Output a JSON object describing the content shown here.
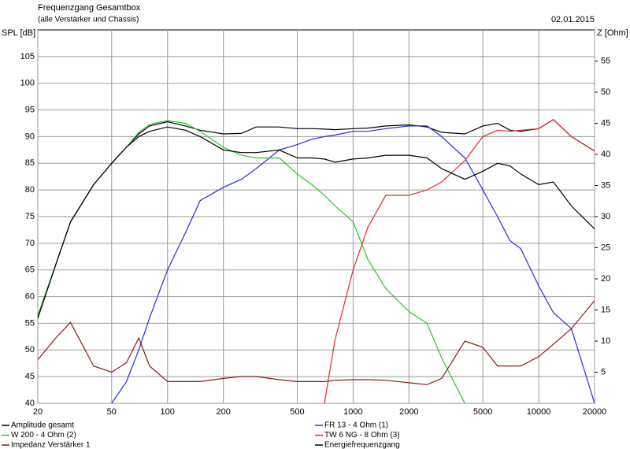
{
  "chart_data": {
    "type": "line",
    "title": "Frequenzgang Gesamtbox",
    "subtitle": "(alle Verstärker und Chassis)",
    "date": "02.01.2015",
    "y_label": "SPL [dB]",
    "y2_label": "Z [Ohm]",
    "x_scale": "log",
    "grid": true,
    "x": [
      20,
      25,
      30,
      40,
      50,
      60,
      70,
      80,
      100,
      125,
      150,
      200,
      250,
      300,
      400,
      500,
      600,
      700,
      800,
      1000,
      1200,
      1500,
      2000,
      2500,
      3000,
      4000,
      5000,
      6000,
      7000,
      8000,
      10000,
      12000,
      15000,
      20000
    ],
    "xlim": [
      20,
      20000
    ],
    "xticks": [
      20,
      50,
      100,
      200,
      500,
      1000,
      2000,
      5000,
      10000,
      20000
    ],
    "ylim": [
      40,
      110
    ],
    "yticks": [
      40,
      45,
      50,
      55,
      60,
      65,
      70,
      75,
      80,
      85,
      90,
      95,
      100,
      105
    ],
    "y2lim": [
      0,
      60
    ],
    "y2ticks": [
      5,
      10,
      15,
      20,
      25,
      30,
      35,
      40,
      45,
      50,
      55
    ],
    "series": [
      {
        "name": "Amplitude gesamt",
        "color": "#000000",
        "values": [
          56,
          66,
          74,
          81,
          85,
          88,
          90.5,
          92,
          92.8,
          92,
          91.2,
          90.5,
          90.6,
          91.8,
          91.8,
          91.5,
          91.5,
          91.4,
          91.3,
          91.5,
          91.6,
          92,
          92.2,
          91.8,
          90.8,
          90.5,
          92,
          92.5,
          91.2,
          91,
          91.5,
          93.2,
          90,
          87.3
        ]
      },
      {
        "name": "FR 13 - 4 Ohm (1)",
        "color": "#2a2ae0",
        "values": [
          null,
          null,
          null,
          null,
          40,
          44,
          50,
          56,
          65,
          72,
          78,
          80.5,
          82,
          84,
          87.5,
          88.5,
          89.5,
          90,
          90.3,
          91,
          91,
          91.5,
          92,
          92,
          90,
          86,
          80,
          75,
          70.5,
          69,
          62,
          57,
          54,
          40
        ]
      },
      {
        "name": "W 200 - 4 Ohm (2)",
        "color": "#22cc22",
        "values": [
          56.5,
          66,
          74,
          81,
          85,
          88,
          90.8,
          92.3,
          93,
          92.5,
          91,
          88,
          86.5,
          86,
          86,
          83,
          81,
          79,
          77,
          74,
          67,
          61.5,
          57.2,
          55,
          48.5,
          40,
          null,
          null,
          null,
          null,
          null,
          null,
          null,
          null
        ]
      },
      {
        "name": "TW 6 NG - 8 Ohm (3)",
        "color": "#e02a2a",
        "values": [
          null,
          null,
          null,
          null,
          null,
          null,
          null,
          null,
          null,
          null,
          null,
          null,
          null,
          null,
          null,
          null,
          null,
          40,
          52,
          65,
          73,
          79,
          79,
          80,
          81.5,
          85.5,
          90,
          91.2,
          91,
          91.2,
          91.5,
          93.2,
          90,
          87.3
        ]
      },
      {
        "name": "Impedanz Verstärker 1",
        "color": "#8b1a1a",
        "axis": "y2",
        "values": [
          7,
          10.5,
          13,
          6,
          5,
          6.5,
          10.5,
          6,
          3.5,
          3.5,
          3.5,
          4,
          4.3,
          4.3,
          3.8,
          3.5,
          3.5,
          3.5,
          3.7,
          3.8,
          3.8,
          3.7,
          3.3,
          3,
          4,
          10,
          9,
          6,
          6,
          6,
          7.5,
          9.5,
          12,
          16.5
        ]
      },
      {
        "name": "Energiefrequenzgang",
        "color": "#000000",
        "values": [
          56,
          66,
          74,
          81,
          85,
          88,
          90,
          91,
          91.8,
          91.2,
          90,
          87.5,
          87,
          87,
          87.5,
          86,
          86,
          85.8,
          85.2,
          85.8,
          86,
          86.5,
          86.5,
          86,
          84,
          82,
          83.5,
          85,
          84.5,
          83,
          81,
          81.5,
          77,
          72.7
        ]
      }
    ]
  }
}
